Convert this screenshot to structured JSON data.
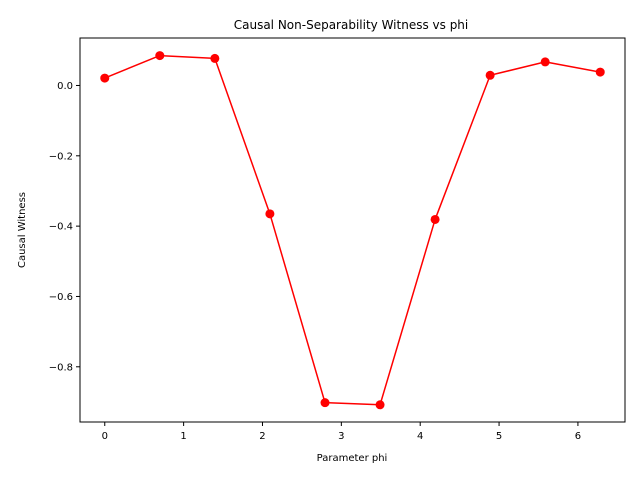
{
  "chart_data": {
    "type": "line",
    "title": "Causal Non-Separability Witness vs phi",
    "xlabel": "Parameter phi",
    "ylabel": "Causal Witness",
    "xlim": [
      -0.314,
      6.597
    ],
    "ylim": [
      -0.957,
      0.135
    ],
    "xticks": [
      0,
      1,
      2,
      3,
      4,
      5,
      6
    ],
    "xtick_labels": [
      "0",
      "1",
      "2",
      "3",
      "4",
      "5",
      "6"
    ],
    "yticks": [
      0.0,
      -0.2,
      -0.4,
      -0.6,
      -0.8
    ],
    "ytick_labels": [
      "0.0",
      "−0.2",
      "−0.4",
      "−0.6",
      "−0.8"
    ],
    "grid": false,
    "series": [
      {
        "color": "#ff0000",
        "marker": "circle",
        "x": [
          0.0,
          0.698,
          1.396,
          2.094,
          2.793,
          3.491,
          4.189,
          4.887,
          5.585,
          6.283
        ],
        "y": [
          0.021,
          0.085,
          0.077,
          -0.365,
          -0.902,
          -0.908,
          -0.381,
          0.029,
          0.067,
          0.038
        ]
      }
    ]
  }
}
